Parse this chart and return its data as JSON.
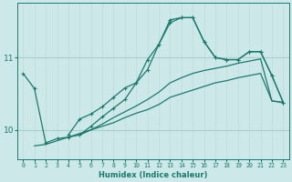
{
  "xlabel": "Humidex (Indice chaleur)",
  "ylabel": "",
  "bg_color": "#cce8e8",
  "line_color": "#1a7a6e",
  "hgrid_color": "#aacece",
  "vgrid_color": "#c0dada",
  "xlim": [
    -0.5,
    23.5
  ],
  "ylim": [
    9.6,
    11.75
  ],
  "yticks": [
    10,
    11
  ],
  "xticks": [
    0,
    1,
    2,
    3,
    4,
    5,
    6,
    7,
    8,
    9,
    10,
    11,
    12,
    13,
    14,
    15,
    16,
    17,
    18,
    19,
    20,
    21,
    22,
    23
  ],
  "line1_x": [
    0,
    1,
    2,
    3,
    4,
    5,
    6,
    7,
    8,
    9,
    10,
    11,
    12,
    13,
    14,
    15,
    16,
    17,
    18,
    19,
    20,
    21,
    22,
    23
  ],
  "line1_y": [
    10.78,
    10.57,
    9.82,
    9.88,
    9.9,
    9.93,
    10.05,
    10.18,
    10.3,
    10.42,
    10.65,
    10.97,
    11.18,
    11.52,
    11.55,
    11.55,
    11.22,
    11.0,
    10.97,
    10.97,
    11.08,
    11.08,
    10.75,
    10.38
  ],
  "line3_x": [
    4,
    5,
    6,
    7,
    8,
    9,
    10,
    11,
    12,
    13,
    14,
    15,
    16,
    17,
    18,
    19,
    20,
    21,
    22,
    23
  ],
  "line3_y": [
    9.93,
    10.15,
    10.22,
    10.32,
    10.45,
    10.58,
    10.65,
    10.83,
    11.18,
    11.48,
    11.55,
    11.55,
    11.22,
    11.0,
    10.97,
    10.97,
    11.08,
    11.08,
    10.75,
    10.38
  ],
  "line2_x": [
    1,
    2,
    3,
    4,
    5,
    6,
    7,
    8,
    9,
    10,
    11,
    12,
    13,
    14,
    15,
    16,
    17,
    18,
    19,
    20,
    21,
    22,
    23
  ],
  "line2_y": [
    9.78,
    9.8,
    9.85,
    9.9,
    9.95,
    10.0,
    10.05,
    10.1,
    10.17,
    10.23,
    10.28,
    10.35,
    10.45,
    10.5,
    10.55,
    10.6,
    10.65,
    10.68,
    10.72,
    10.75,
    10.78,
    10.4,
    10.38
  ],
  "line4_x": [
    5,
    6,
    7,
    8,
    9,
    10,
    11,
    12,
    13,
    14,
    15,
    16,
    17,
    18,
    19,
    20,
    21,
    22,
    23
  ],
  "line4_y": [
    9.93,
    10.0,
    10.08,
    10.17,
    10.25,
    10.33,
    10.42,
    10.52,
    10.65,
    10.72,
    10.78,
    10.82,
    10.85,
    10.88,
    10.92,
    10.95,
    10.98,
    10.4,
    10.38
  ]
}
